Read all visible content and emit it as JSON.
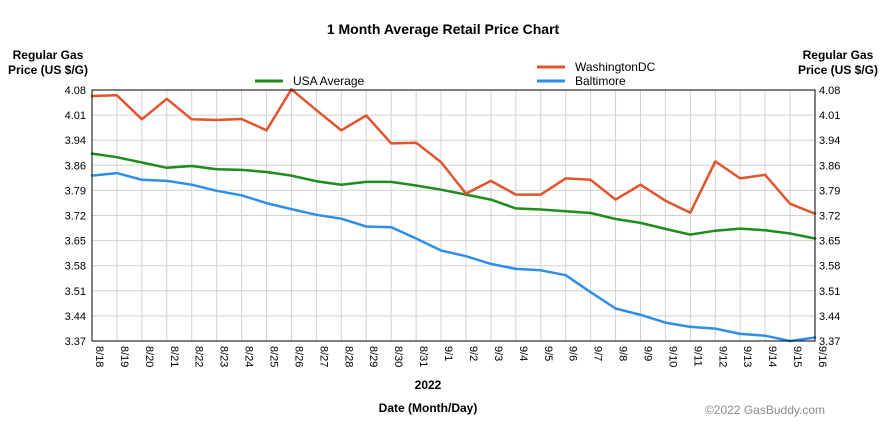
{
  "chart_data": {
    "type": "line",
    "title": "1 Month Average Retail Price Chart",
    "ylabel_left": [
      "Regular Gas",
      "Price (US $/G)"
    ],
    "ylabel_right": [
      "Regular Gas",
      "Price (US $/G)"
    ],
    "year_label": "2022",
    "xlabel": "Date (Month/Day)",
    "copyright": "©2022 GasBuddy.com",
    "grid": true,
    "ylim": [
      3.37,
      4.08
    ],
    "y_ticks": [
      "4.08",
      "4.01",
      "3.94",
      "3.86",
      "3.79",
      "3.72",
      "3.65",
      "3.58",
      "3.51",
      "3.44",
      "3.37"
    ],
    "categories": [
      "8/18",
      "8/19",
      "8/20",
      "8/21",
      "8/22",
      "8/23",
      "8/24",
      "8/25",
      "8/26",
      "8/27",
      "8/28",
      "8/29",
      "8/30",
      "8/31",
      "9/1",
      "9/2",
      "9/3",
      "9/4",
      "9/5",
      "9/6",
      "9/7",
      "9/8",
      "9/9",
      "9/10",
      "9/11",
      "9/12",
      "9/13",
      "9/14",
      "9/15",
      "9/16"
    ],
    "series": [
      {
        "name": "USA Average",
        "color": "#1e8c1e",
        "values": [
          3.9,
          3.89,
          3.875,
          3.86,
          3.865,
          3.856,
          3.854,
          3.848,
          3.838,
          3.822,
          3.812,
          3.82,
          3.82,
          3.81,
          3.798,
          3.784,
          3.77,
          3.745,
          3.742,
          3.737,
          3.732,
          3.715,
          3.704,
          3.687,
          3.671,
          3.682,
          3.688,
          3.683,
          3.674,
          3.66
        ]
      },
      {
        "name": "WashingtonDC",
        "color": "#e0552b",
        "values": [
          4.063,
          4.065,
          3.997,
          4.055,
          3.997,
          3.995,
          3.998,
          3.966,
          4.082,
          4.023,
          3.966,
          4.008,
          3.929,
          3.931,
          3.876,
          3.787,
          3.823,
          3.784,
          3.784,
          3.83,
          3.826,
          3.77,
          3.812,
          3.767,
          3.733,
          3.878,
          3.83,
          3.84,
          3.758,
          3.73
        ]
      },
      {
        "name": "Baltimore",
        "color": "#2f8ee8",
        "values": [
          3.838,
          3.845,
          3.826,
          3.823,
          3.812,
          3.795,
          3.782,
          3.76,
          3.743,
          3.727,
          3.716,
          3.694,
          3.692,
          3.66,
          3.626,
          3.61,
          3.588,
          3.574,
          3.57,
          3.556,
          3.508,
          3.462,
          3.444,
          3.422,
          3.41,
          3.405,
          3.39,
          3.385,
          3.37,
          3.38
        ]
      }
    ],
    "legend_position": "top"
  }
}
